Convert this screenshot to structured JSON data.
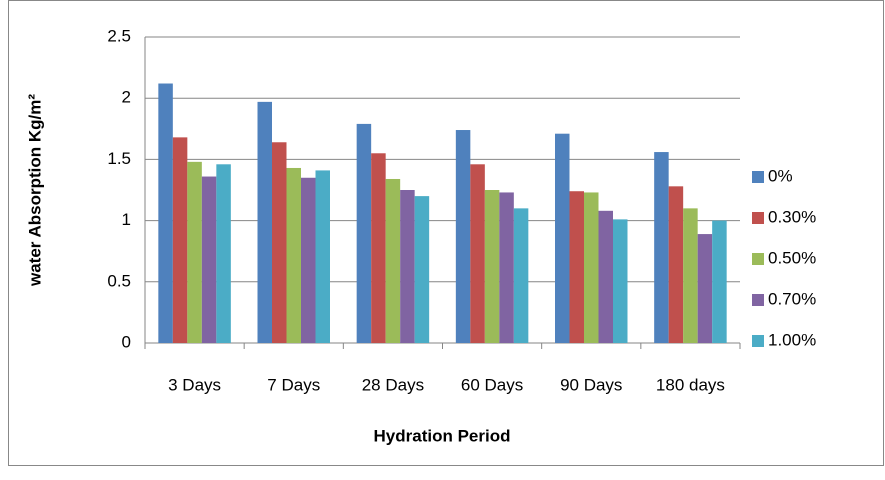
{
  "chart_data": {
    "type": "bar",
    "x_label": "Hydration Period",
    "y_label": "water Absorption Kg/m²",
    "categories": [
      "3 Days",
      "7 Days",
      "28 Days",
      "60 Days",
      "90 Days",
      "180 days"
    ],
    "series": [
      {
        "name": "0%",
        "color": "#4f81bd",
        "values": [
          2.12,
          1.97,
          1.79,
          1.74,
          1.71,
          1.56
        ]
      },
      {
        "name": "0.30%",
        "color": "#c0504d",
        "values": [
          1.68,
          1.64,
          1.55,
          1.46,
          1.24,
          1.28
        ]
      },
      {
        "name": "0.50%",
        "color": "#9bbb59",
        "values": [
          1.48,
          1.43,
          1.34,
          1.25,
          1.23,
          1.1
        ]
      },
      {
        "name": "0.70%",
        "color": "#8064a2",
        "values": [
          1.36,
          1.35,
          1.25,
          1.23,
          1.08,
          0.89
        ]
      },
      {
        "name": "1.00%",
        "color": "#4bacc6",
        "values": [
          1.46,
          1.41,
          1.2,
          1.1,
          1.01,
          1.0
        ]
      }
    ],
    "ylim": [
      0,
      2.5
    ],
    "yticks": [
      0,
      0.5,
      1,
      1.5,
      2,
      2.5
    ],
    "grid": true,
    "legend": "right"
  }
}
